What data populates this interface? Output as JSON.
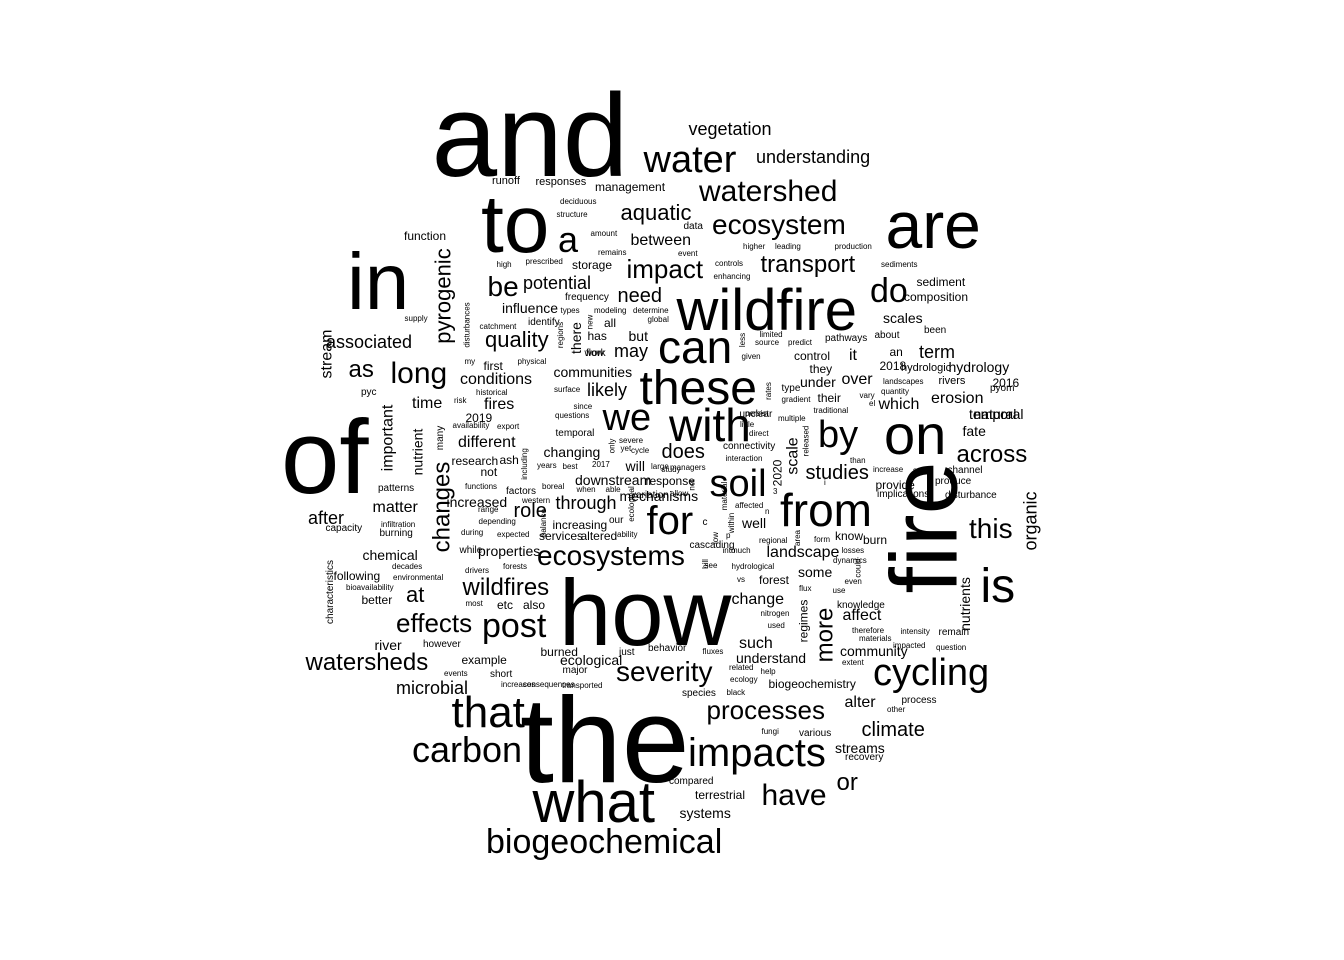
{
  "words": [
    "and",
    "the",
    "of",
    "how",
    "fire",
    "to",
    "in",
    "are",
    "wildfire",
    "these",
    "what",
    "on",
    "can",
    "with",
    "we",
    "is",
    "from",
    "for",
    "cycling",
    "that",
    "impacts",
    "soil",
    "by",
    "water",
    "carbon",
    "biogeochemical",
    "do",
    "a",
    "watershed",
    "ecosystem",
    "ecosystems",
    "severity",
    "post",
    "long",
    "processes",
    "have",
    "effects",
    "this",
    "transport",
    "impact",
    "be",
    "watersheds",
    "across",
    "changes",
    "aquatic",
    "or",
    "quality",
    "wildfires",
    "pyrogenic",
    "vegetation",
    "understanding",
    "as",
    "more",
    "studies",
    "organic",
    "role",
    "does",
    "climate",
    "through",
    "associated",
    "potential",
    "need",
    "term",
    "may",
    "microbial",
    "stream",
    "likely",
    "different",
    "scale",
    "after",
    "alter",
    "at",
    "nutrients",
    "it",
    "matter",
    "between",
    "change",
    "such",
    "landscape",
    "over",
    "erosion",
    "which",
    "conditions",
    "fires",
    "important",
    "understand",
    "chemical",
    "time",
    "nutrient",
    "hydrology",
    "temporal",
    "influence",
    "communities",
    "downstream",
    "changing",
    "biogeochemistry",
    "management",
    "terrestrial",
    "systems",
    "streams",
    "fate",
    "but",
    "there",
    "some",
    "scales",
    "composition",
    "sediment",
    "properties",
    "forest",
    "burned",
    "example",
    "community",
    "affect",
    "an",
    "regimes",
    "increased",
    "better",
    "recovery",
    "responses",
    "runoff",
    "function",
    "hydrologic",
    "rivers",
    "natural",
    "temporal",
    "knowledge",
    "services",
    "increasing",
    "control",
    "mechanisms",
    "will",
    "well",
    "know",
    "burn",
    "etc",
    "also",
    "river",
    "however",
    "decades",
    "including",
    "first",
    "2018",
    "2020",
    "2017",
    "2016",
    "2019",
    "research",
    "ash",
    "not",
    "response",
    "their",
    "under",
    "they",
    "large",
    "all",
    "has",
    "flow",
    "identify",
    "work",
    "storage",
    "data",
    "event",
    "higher",
    "leading",
    "production",
    "sediments",
    "controls",
    "enhancing",
    "remains",
    "prescribed",
    "high",
    "amount",
    "structure",
    "deciduous",
    "frequency",
    "modeling",
    "determine",
    "global",
    "types",
    "new",
    "regions",
    "supply",
    "catchment",
    "disturbances",
    "my",
    "physical",
    "pyc",
    "historical",
    "risk",
    "availability",
    "export",
    "surface",
    "since",
    "questions",
    "severe",
    "cycle",
    "interaction",
    "connectivity",
    "direct",
    "little",
    "persist",
    "multiple",
    "traditional",
    "vary",
    "quantity",
    "landscapes",
    "pyom",
    "gradient",
    "type",
    "released",
    "unclear",
    "rates",
    "given",
    "source",
    "predict",
    "limited",
    "less",
    "pathways",
    "about",
    "been",
    "many",
    "functions",
    "range",
    "depending",
    "expected",
    "balance",
    "during",
    "while",
    "drivers",
    "forests",
    "most",
    "bioavailability",
    "environmental",
    "following",
    "characteristics",
    "capacity",
    "infiltration",
    "burning",
    "patterns",
    "factors",
    "boreal",
    "western",
    "years",
    "best",
    "when",
    "able",
    "only",
    "ecological",
    "our",
    "into",
    "much",
    "hydrological",
    "vs",
    "nitrogen",
    "used",
    "regional",
    "form",
    "area",
    "flux",
    "losses",
    "dynamics",
    "even",
    "use",
    "could",
    "therefore",
    "intensity",
    "remain",
    "question",
    "impacted",
    "materials",
    "extent",
    "events",
    "short",
    "major",
    "increases",
    "consequences",
    "transported",
    "just",
    "behavior",
    "fluxes",
    "ecology",
    "help",
    "related",
    "species",
    "black",
    "other",
    "process",
    "fungi",
    "various",
    "compared",
    "than",
    "increase",
    "soils",
    "channel",
    "produce",
    "implications",
    "disturbance",
    "provide",
    "ability",
    "altered",
    "material",
    "net",
    "managers",
    "allow",
    "study",
    "see",
    "hill",
    "cascading",
    "low",
    "affected",
    "within",
    "variation",
    "yet",
    "ecological",
    "c",
    "p",
    "n",
    "3",
    "i",
    "el",
    "al",
    "size",
    "might"
  ]
}
